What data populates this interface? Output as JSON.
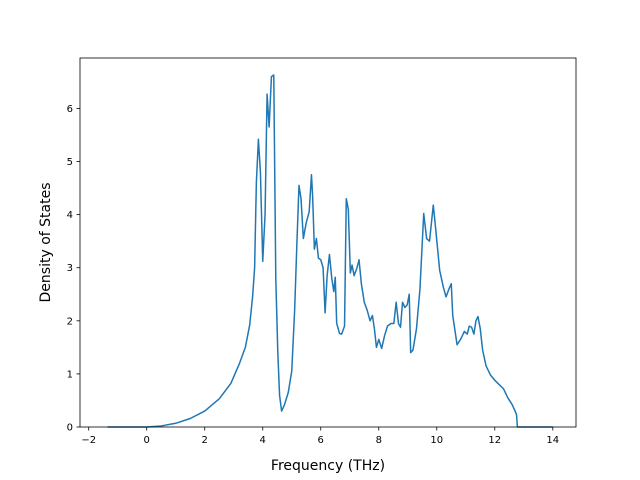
{
  "chart_data": {
    "type": "line",
    "xlabel": "Frequency (THz)",
    "ylabel": "Density of States",
    "xlim": [
      -2.3,
      14.8
    ],
    "ylim": [
      0,
      6.95
    ],
    "xticks": [
      -2,
      0,
      2,
      4,
      6,
      8,
      10,
      12,
      14
    ],
    "yticks": [
      0,
      1,
      2,
      3,
      4,
      5,
      6
    ],
    "grid": false,
    "color": "#1f77b4",
    "series": [
      {
        "points": [
          [
            -1.35,
            0.0
          ],
          [
            0.0,
            0.0
          ],
          [
            0.5,
            0.02
          ],
          [
            1.0,
            0.07
          ],
          [
            1.5,
            0.16
          ],
          [
            2.0,
            0.3
          ],
          [
            2.5,
            0.53
          ],
          [
            2.9,
            0.82
          ],
          [
            3.2,
            1.2
          ],
          [
            3.4,
            1.5
          ],
          [
            3.55,
            1.92
          ],
          [
            3.65,
            2.45
          ],
          [
            3.72,
            3.0
          ],
          [
            3.78,
            4.6
          ],
          [
            3.85,
            5.42
          ],
          [
            3.92,
            4.8
          ],
          [
            4.0,
            3.12
          ],
          [
            4.08,
            4.0
          ],
          [
            4.15,
            6.27
          ],
          [
            4.22,
            5.65
          ],
          [
            4.3,
            6.6
          ],
          [
            4.38,
            6.63
          ],
          [
            4.45,
            2.8
          ],
          [
            4.52,
            1.4
          ],
          [
            4.58,
            0.6
          ],
          [
            4.65,
            0.3
          ],
          [
            4.75,
            0.42
          ],
          [
            4.88,
            0.65
          ],
          [
            5.0,
            1.05
          ],
          [
            5.1,
            2.2
          ],
          [
            5.18,
            3.5
          ],
          [
            5.25,
            4.55
          ],
          [
            5.32,
            4.3
          ],
          [
            5.4,
            3.55
          ],
          [
            5.5,
            3.85
          ],
          [
            5.6,
            4.05
          ],
          [
            5.68,
            4.75
          ],
          [
            5.72,
            4.35
          ],
          [
            5.78,
            3.35
          ],
          [
            5.85,
            3.55
          ],
          [
            5.92,
            3.18
          ],
          [
            6.0,
            3.15
          ],
          [
            6.08,
            3.0
          ],
          [
            6.15,
            2.15
          ],
          [
            6.22,
            2.85
          ],
          [
            6.3,
            3.25
          ],
          [
            6.38,
            2.8
          ],
          [
            6.45,
            2.55
          ],
          [
            6.5,
            2.82
          ],
          [
            6.55,
            1.95
          ],
          [
            6.65,
            1.76
          ],
          [
            6.72,
            1.75
          ],
          [
            6.82,
            1.9
          ],
          [
            6.88,
            4.3
          ],
          [
            6.95,
            4.1
          ],
          [
            7.02,
            2.9
          ],
          [
            7.08,
            3.05
          ],
          [
            7.15,
            2.85
          ],
          [
            7.25,
            3.0
          ],
          [
            7.32,
            3.15
          ],
          [
            7.4,
            2.7
          ],
          [
            7.5,
            2.35
          ],
          [
            7.6,
            2.2
          ],
          [
            7.7,
            2.0
          ],
          [
            7.78,
            2.1
          ],
          [
            7.85,
            1.85
          ],
          [
            7.92,
            1.5
          ],
          [
            8.0,
            1.65
          ],
          [
            8.1,
            1.48
          ],
          [
            8.2,
            1.72
          ],
          [
            8.3,
            1.9
          ],
          [
            8.42,
            1.95
          ],
          [
            8.52,
            1.95
          ],
          [
            8.6,
            2.35
          ],
          [
            8.68,
            1.95
          ],
          [
            8.75,
            1.88
          ],
          [
            8.82,
            2.35
          ],
          [
            8.9,
            2.25
          ],
          [
            8.98,
            2.3
          ],
          [
            9.05,
            2.5
          ],
          [
            9.1,
            1.4
          ],
          [
            9.18,
            1.45
          ],
          [
            9.3,
            1.85
          ],
          [
            9.42,
            2.6
          ],
          [
            9.55,
            4.02
          ],
          [
            9.65,
            3.55
          ],
          [
            9.75,
            3.5
          ],
          [
            9.88,
            4.18
          ],
          [
            9.95,
            3.8
          ],
          [
            10.1,
            2.95
          ],
          [
            10.22,
            2.65
          ],
          [
            10.32,
            2.45
          ],
          [
            10.42,
            2.6
          ],
          [
            10.5,
            2.7
          ],
          [
            10.55,
            2.1
          ],
          [
            10.7,
            1.55
          ],
          [
            10.82,
            1.65
          ],
          [
            10.95,
            1.8
          ],
          [
            11.05,
            1.75
          ],
          [
            11.12,
            1.9
          ],
          [
            11.2,
            1.88
          ],
          [
            11.28,
            1.75
          ],
          [
            11.35,
            2.0
          ],
          [
            11.42,
            2.08
          ],
          [
            11.5,
            1.85
          ],
          [
            11.58,
            1.45
          ],
          [
            11.7,
            1.15
          ],
          [
            11.85,
            0.98
          ],
          [
            12.0,
            0.88
          ],
          [
            12.15,
            0.8
          ],
          [
            12.3,
            0.72
          ],
          [
            12.45,
            0.55
          ],
          [
            12.6,
            0.42
          ],
          [
            12.7,
            0.3
          ],
          [
            12.75,
            0.23
          ],
          [
            12.78,
            0.0
          ],
          [
            14.0,
            0.0
          ]
        ]
      }
    ]
  }
}
